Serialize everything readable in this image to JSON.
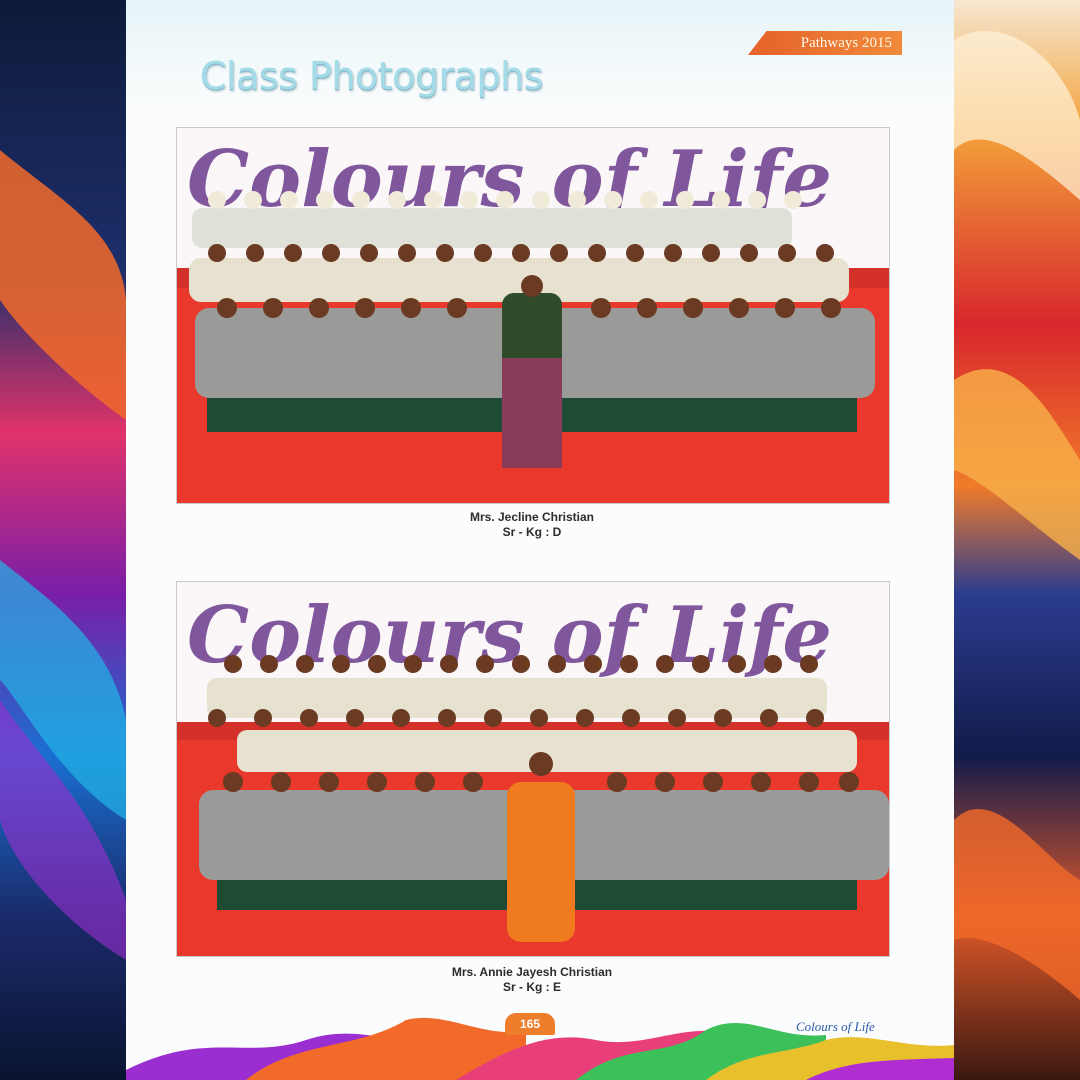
{
  "header": {
    "publication_tag": "Pathways 2015",
    "page_title": "Class Photographs"
  },
  "photos": [
    {
      "banner_text": "Colours of Life",
      "teacher": "Mrs. Jecline Christian",
      "class": "Sr - Kg : D"
    },
    {
      "banner_text": "Colours of Life",
      "teacher": "Mrs. Annie Jayesh Christian",
      "class": "Sr - Kg : E"
    }
  ],
  "footer": {
    "page_number": "165",
    "brand": "Colours of Life"
  },
  "colors": {
    "accent_orange": "#ef7e2c",
    "title_blue": "#a4dbe8",
    "stage_red": "#e8392c",
    "banner_purple": "#6b3a8c",
    "banner_pink": "#e83e7a"
  }
}
